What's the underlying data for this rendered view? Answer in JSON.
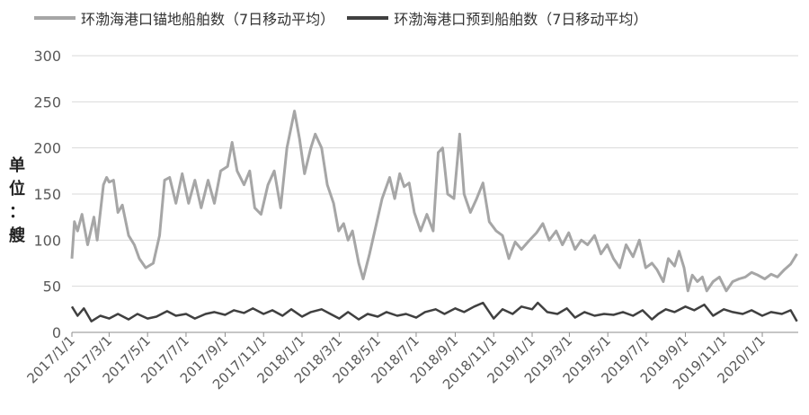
{
  "legend": {
    "series1": "环渤海港口锚地船舶数（7日移动平均）",
    "series2": "环渤海港口预到船舶数（7日移动平均）"
  },
  "ylabel_chars": [
    "单",
    "位",
    "：",
    "艘"
  ],
  "colors": {
    "series1": "#a6a6a6",
    "series2": "#404040",
    "grid": "#d9d9d9",
    "axis": "#8c8c8c"
  },
  "chart_data": {
    "type": "line",
    "ylabel": "单位：艘",
    "ylim": [
      0,
      300
    ],
    "yticks": [
      0,
      50,
      100,
      150,
      200,
      250,
      300
    ],
    "xlim": [
      "2017-01-01",
      "2020-02-27"
    ],
    "xticks": [
      "2017/1/1",
      "2017/3/1",
      "2017/5/1",
      "2017/7/1",
      "2017/9/1",
      "2017/11/1",
      "2018/1/1",
      "2018/3/1",
      "2018/5/1",
      "2018/7/1",
      "2018/9/1",
      "2018/11/1",
      "2019/1/1",
      "2019/3/1",
      "2019/5/1",
      "2019/7/1",
      "2019/9/1",
      "2019/11/1",
      "2020/1/1"
    ],
    "grid": true,
    "legend_position": "top",
    "series": [
      {
        "name": "环渤海港口锚地船舶数（7日移动平均）",
        "points": [
          [
            "2017-01-01",
            80
          ],
          [
            "2017-01-05",
            120
          ],
          [
            "2017-01-10",
            110
          ],
          [
            "2017-01-17",
            128
          ],
          [
            "2017-01-26",
            95
          ],
          [
            "2017-02-05",
            125
          ],
          [
            "2017-02-10",
            100
          ],
          [
            "2017-02-20",
            160
          ],
          [
            "2017-02-25",
            168
          ],
          [
            "2017-03-01",
            163
          ],
          [
            "2017-03-08",
            165
          ],
          [
            "2017-03-15",
            130
          ],
          [
            "2017-03-22",
            138
          ],
          [
            "2017-04-01",
            105
          ],
          [
            "2017-04-10",
            95
          ],
          [
            "2017-04-18",
            80
          ],
          [
            "2017-04-28",
            70
          ],
          [
            "2017-05-10",
            75
          ],
          [
            "2017-05-20",
            105
          ],
          [
            "2017-05-28",
            165
          ],
          [
            "2017-06-05",
            168
          ],
          [
            "2017-06-15",
            140
          ],
          [
            "2017-06-25",
            172
          ],
          [
            "2017-07-05",
            140
          ],
          [
            "2017-07-15",
            165
          ],
          [
            "2017-07-25",
            135
          ],
          [
            "2017-08-05",
            165
          ],
          [
            "2017-08-15",
            140
          ],
          [
            "2017-08-25",
            175
          ],
          [
            "2017-09-05",
            180
          ],
          [
            "2017-09-12",
            206
          ],
          [
            "2017-09-20",
            175
          ],
          [
            "2017-10-01",
            160
          ],
          [
            "2017-10-10",
            175
          ],
          [
            "2017-10-18",
            135
          ],
          [
            "2017-10-28",
            128
          ],
          [
            "2017-11-08",
            160
          ],
          [
            "2017-11-18",
            175
          ],
          [
            "2017-11-28",
            135
          ],
          [
            "2017-12-08",
            200
          ],
          [
            "2017-12-20",
            240
          ],
          [
            "2017-12-28",
            210
          ],
          [
            "2018-01-05",
            172
          ],
          [
            "2018-01-15",
            200
          ],
          [
            "2018-01-22",
            215
          ],
          [
            "2018-02-01",
            200
          ],
          [
            "2018-02-10",
            160
          ],
          [
            "2018-02-20",
            140
          ],
          [
            "2018-02-28",
            110
          ],
          [
            "2018-03-08",
            118
          ],
          [
            "2018-03-15",
            100
          ],
          [
            "2018-03-22",
            110
          ],
          [
            "2018-04-01",
            75
          ],
          [
            "2018-04-08",
            58
          ],
          [
            "2018-04-18",
            85
          ],
          [
            "2018-04-28",
            115
          ],
          [
            "2018-05-08",
            145
          ],
          [
            "2018-05-20",
            168
          ],
          [
            "2018-05-28",
            145
          ],
          [
            "2018-06-05",
            172
          ],
          [
            "2018-06-12",
            158
          ],
          [
            "2018-06-20",
            162
          ],
          [
            "2018-06-28",
            130
          ],
          [
            "2018-07-08",
            110
          ],
          [
            "2018-07-18",
            128
          ],
          [
            "2018-07-28",
            110
          ],
          [
            "2018-08-05",
            195
          ],
          [
            "2018-08-12",
            200
          ],
          [
            "2018-08-20",
            150
          ],
          [
            "2018-08-30",
            145
          ],
          [
            "2018-09-08",
            215
          ],
          [
            "2018-09-15",
            150
          ],
          [
            "2018-09-25",
            130
          ],
          [
            "2018-10-05",
            145
          ],
          [
            "2018-10-15",
            162
          ],
          [
            "2018-10-25",
            120
          ],
          [
            "2018-11-05",
            110
          ],
          [
            "2018-11-15",
            105
          ],
          [
            "2018-11-25",
            80
          ],
          [
            "2018-12-05",
            98
          ],
          [
            "2018-12-15",
            90
          ],
          [
            "2018-12-28",
            100
          ],
          [
            "2019-01-08",
            108
          ],
          [
            "2019-01-18",
            118
          ],
          [
            "2019-01-28",
            100
          ],
          [
            "2019-02-08",
            110
          ],
          [
            "2019-02-18",
            95
          ],
          [
            "2019-02-28",
            108
          ],
          [
            "2019-03-10",
            90
          ],
          [
            "2019-03-20",
            100
          ],
          [
            "2019-03-30",
            95
          ],
          [
            "2019-04-10",
            105
          ],
          [
            "2019-04-20",
            85
          ],
          [
            "2019-04-30",
            95
          ],
          [
            "2019-05-10",
            80
          ],
          [
            "2019-05-20",
            70
          ],
          [
            "2019-05-30",
            95
          ],
          [
            "2019-06-10",
            82
          ],
          [
            "2019-06-20",
            100
          ],
          [
            "2019-06-30",
            70
          ],
          [
            "2019-07-10",
            75
          ],
          [
            "2019-07-18",
            68
          ],
          [
            "2019-07-28",
            55
          ],
          [
            "2019-08-05",
            80
          ],
          [
            "2019-08-15",
            72
          ],
          [
            "2019-08-22",
            88
          ],
          [
            "2019-08-30",
            70
          ],
          [
            "2019-09-05",
            45
          ],
          [
            "2019-09-12",
            62
          ],
          [
            "2019-09-20",
            55
          ],
          [
            "2019-09-28",
            60
          ],
          [
            "2019-10-05",
            45
          ],
          [
            "2019-10-15",
            55
          ],
          [
            "2019-10-25",
            60
          ],
          [
            "2019-11-05",
            45
          ],
          [
            "2019-11-15",
            55
          ],
          [
            "2019-11-25",
            58
          ],
          [
            "2019-12-05",
            60
          ],
          [
            "2019-12-15",
            65
          ],
          [
            "2019-12-25",
            62
          ],
          [
            "2020-01-05",
            58
          ],
          [
            "2020-01-15",
            63
          ],
          [
            "2020-01-25",
            60
          ],
          [
            "2020-02-05",
            68
          ],
          [
            "2020-02-15",
            74
          ],
          [
            "2020-02-25",
            85
          ]
        ]
      },
      {
        "name": "环渤海港口预到船舶数（7日移动平均）",
        "points": [
          [
            "2017-01-01",
            28
          ],
          [
            "2017-01-10",
            18
          ],
          [
            "2017-01-20",
            26
          ],
          [
            "2017-02-01",
            12
          ],
          [
            "2017-02-15",
            18
          ],
          [
            "2017-03-01",
            15
          ],
          [
            "2017-03-15",
            20
          ],
          [
            "2017-04-01",
            14
          ],
          [
            "2017-04-15",
            20
          ],
          [
            "2017-05-01",
            15
          ],
          [
            "2017-05-15",
            17
          ],
          [
            "2017-06-01",
            23
          ],
          [
            "2017-06-15",
            18
          ],
          [
            "2017-07-01",
            20
          ],
          [
            "2017-07-15",
            15
          ],
          [
            "2017-08-01",
            20
          ],
          [
            "2017-08-15",
            22
          ],
          [
            "2017-09-01",
            19
          ],
          [
            "2017-09-15",
            24
          ],
          [
            "2017-10-01",
            21
          ],
          [
            "2017-10-15",
            26
          ],
          [
            "2017-11-01",
            20
          ],
          [
            "2017-11-15",
            24
          ],
          [
            "2017-12-01",
            18
          ],
          [
            "2017-12-15",
            25
          ],
          [
            "2018-01-01",
            17
          ],
          [
            "2018-01-15",
            22
          ],
          [
            "2018-02-01",
            25
          ],
          [
            "2018-02-15",
            20
          ],
          [
            "2018-03-01",
            15
          ],
          [
            "2018-03-15",
            22
          ],
          [
            "2018-04-01",
            14
          ],
          [
            "2018-04-15",
            20
          ],
          [
            "2018-05-01",
            17
          ],
          [
            "2018-05-15",
            22
          ],
          [
            "2018-06-01",
            18
          ],
          [
            "2018-06-15",
            20
          ],
          [
            "2018-07-01",
            16
          ],
          [
            "2018-07-15",
            22
          ],
          [
            "2018-08-01",
            25
          ],
          [
            "2018-08-15",
            20
          ],
          [
            "2018-09-01",
            26
          ],
          [
            "2018-09-15",
            22
          ],
          [
            "2018-10-01",
            28
          ],
          [
            "2018-10-15",
            32
          ],
          [
            "2018-11-01",
            15
          ],
          [
            "2018-11-15",
            25
          ],
          [
            "2018-12-01",
            20
          ],
          [
            "2018-12-15",
            28
          ],
          [
            "2019-01-01",
            25
          ],
          [
            "2019-01-10",
            32
          ],
          [
            "2019-01-25",
            22
          ],
          [
            "2019-02-10",
            20
          ],
          [
            "2019-02-25",
            26
          ],
          [
            "2019-03-10",
            16
          ],
          [
            "2019-03-25",
            22
          ],
          [
            "2019-04-10",
            18
          ],
          [
            "2019-04-25",
            20
          ],
          [
            "2019-05-10",
            19
          ],
          [
            "2019-05-25",
            22
          ],
          [
            "2019-06-10",
            18
          ],
          [
            "2019-06-25",
            24
          ],
          [
            "2019-07-10",
            14
          ],
          [
            "2019-07-20",
            20
          ],
          [
            "2019-08-01",
            25
          ],
          [
            "2019-08-15",
            22
          ],
          [
            "2019-09-01",
            28
          ],
          [
            "2019-09-15",
            24
          ],
          [
            "2019-10-01",
            30
          ],
          [
            "2019-10-15",
            18
          ],
          [
            "2019-11-01",
            25
          ],
          [
            "2019-11-15",
            22
          ],
          [
            "2019-12-01",
            20
          ],
          [
            "2019-12-15",
            24
          ],
          [
            "2020-01-01",
            18
          ],
          [
            "2020-01-15",
            22
          ],
          [
            "2020-02-01",
            20
          ],
          [
            "2020-02-15",
            24
          ],
          [
            "2020-02-25",
            12
          ]
        ]
      }
    ]
  }
}
